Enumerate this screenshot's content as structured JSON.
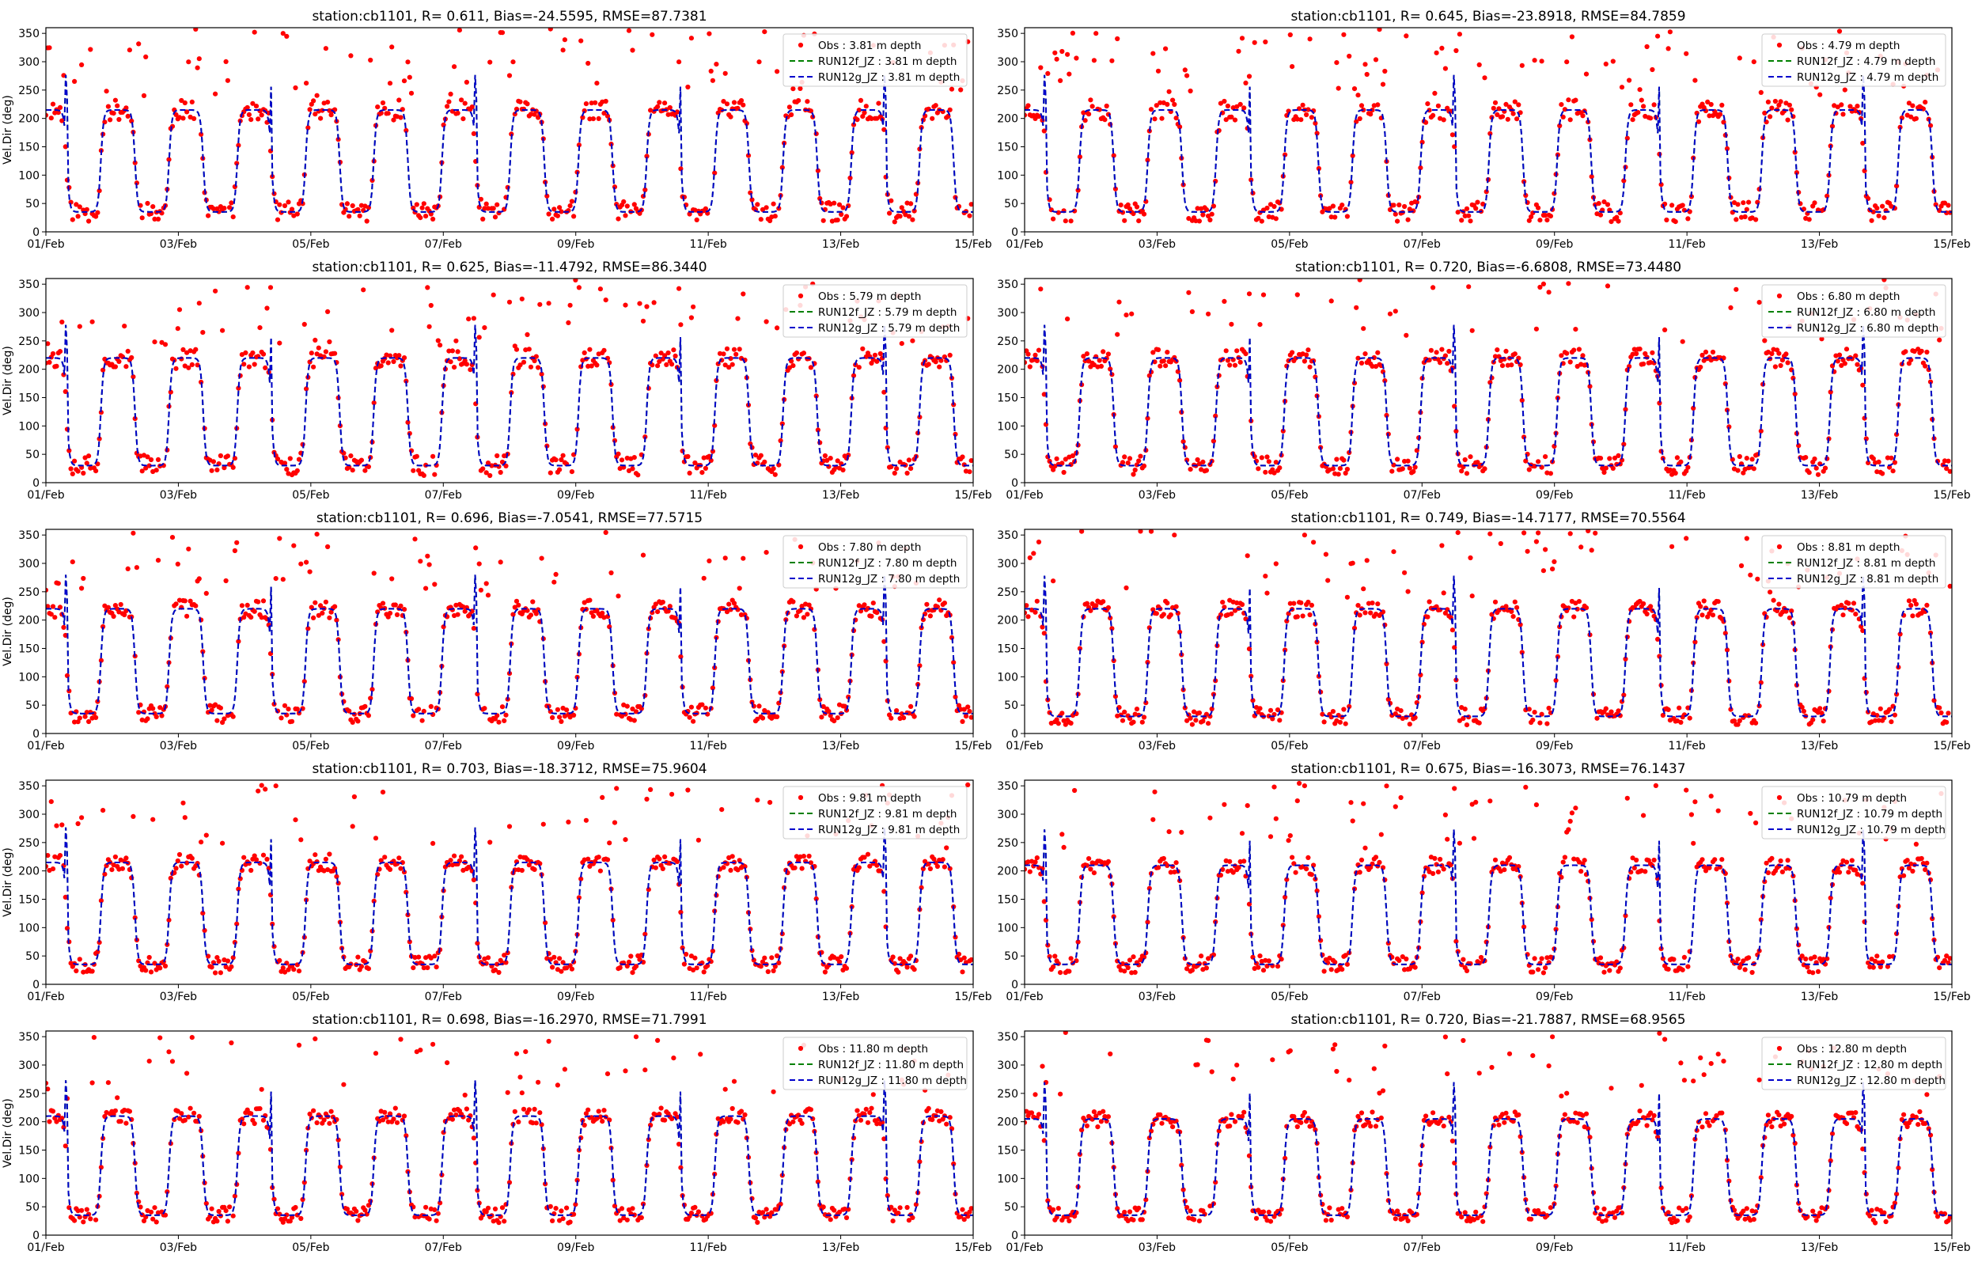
{
  "figure": {
    "background": "#ffffff"
  },
  "colors": {
    "obs": "#ff0000",
    "model_f": "#008000",
    "model_g": "#0000cc",
    "axis": "#000000"
  },
  "chart_data": [
    {
      "type": "scatter+line",
      "title": "station:cb1101, R= 0.611, Bias=-24.5595, RMSE=87.7381",
      "ylabel": "Vel.Dir (deg)",
      "ylim": [
        0,
        360
      ],
      "yticks": [
        0,
        50,
        100,
        150,
        200,
        250,
        300,
        350
      ],
      "xlim": [
        "01/Feb",
        "15/Feb"
      ],
      "xticks": [
        "01/Feb",
        "03/Feb",
        "05/Feb",
        "07/Feb",
        "09/Feb",
        "11/Feb",
        "13/Feb",
        "15/Feb"
      ],
      "legend_position": "upper right",
      "series": [
        {
          "name": "Obs : 3.81 m depth",
          "style": "dots",
          "color": "#ff0000"
        },
        {
          "name": "RUN12f_JZ : 3.81 m depth",
          "style": "dashed",
          "color": "#008000"
        },
        {
          "name": "RUN12g_JZ : 3.81 m depth",
          "style": "dashed",
          "color": "#0000cc"
        }
      ],
      "pattern": {
        "period_days": 1.03,
        "ebb_deg": 215,
        "flood_deg": 35,
        "obs_spread_deg": 18,
        "obs_spike_fraction": 0.16,
        "phase_days": 0.2,
        "seed": 11
      }
    },
    {
      "type": "scatter+line",
      "title": "station:cb1101, R= 0.645, Bias=-23.8918, RMSE=84.7859",
      "ylabel": "",
      "ylim": [
        0,
        360
      ],
      "yticks": [
        0,
        50,
        100,
        150,
        200,
        250,
        300,
        350
      ],
      "xlim": [
        "01/Feb",
        "15/Feb"
      ],
      "xticks": [
        "01/Feb",
        "03/Feb",
        "05/Feb",
        "07/Feb",
        "09/Feb",
        "11/Feb",
        "13/Feb",
        "15/Feb"
      ],
      "legend_position": "upper right",
      "series": [
        {
          "name": "Obs : 4.79 m depth",
          "style": "dots",
          "color": "#ff0000"
        },
        {
          "name": "RUN12f_JZ : 4.79 m depth",
          "style": "dashed",
          "color": "#008000"
        },
        {
          "name": "RUN12g_JZ : 4.79 m depth",
          "style": "dashed",
          "color": "#0000cc"
        }
      ],
      "pattern": {
        "period_days": 1.03,
        "ebb_deg": 215,
        "flood_deg": 35,
        "obs_spread_deg": 18,
        "obs_spike_fraction": 0.15,
        "phase_days": 0.2,
        "seed": 23
      }
    },
    {
      "type": "scatter+line",
      "title": "station:cb1101, R= 0.625, Bias=-11.4792, RMSE=86.3440",
      "ylabel": "Vel.Dir (deg)",
      "ylim": [
        0,
        360
      ],
      "yticks": [
        0,
        50,
        100,
        150,
        200,
        250,
        300,
        350
      ],
      "xlim": [
        "01/Feb",
        "15/Feb"
      ],
      "xticks": [
        "01/Feb",
        "03/Feb",
        "05/Feb",
        "07/Feb",
        "09/Feb",
        "11/Feb",
        "13/Feb",
        "15/Feb"
      ],
      "legend_position": "upper right",
      "series": [
        {
          "name": "Obs : 5.79 m depth",
          "style": "dots",
          "color": "#ff0000"
        },
        {
          "name": "RUN12f_JZ : 5.79 m depth",
          "style": "dashed",
          "color": "#008000"
        },
        {
          "name": "RUN12g_JZ : 5.79 m depth",
          "style": "dashed",
          "color": "#0000cc"
        }
      ],
      "pattern": {
        "period_days": 1.03,
        "ebb_deg": 220,
        "flood_deg": 30,
        "obs_spread_deg": 18,
        "obs_spike_fraction": 0.14,
        "phase_days": 0.2,
        "seed": 37
      }
    },
    {
      "type": "scatter+line",
      "title": "station:cb1101, R= 0.720, Bias=-6.6808, RMSE=73.4480",
      "ylabel": "",
      "ylim": [
        0,
        360
      ],
      "yticks": [
        0,
        50,
        100,
        150,
        200,
        250,
        300,
        350
      ],
      "xlim": [
        "01/Feb",
        "15/Feb"
      ],
      "xticks": [
        "01/Feb",
        "03/Feb",
        "05/Feb",
        "07/Feb",
        "09/Feb",
        "11/Feb",
        "13/Feb",
        "15/Feb"
      ],
      "legend_position": "upper right",
      "series": [
        {
          "name": "Obs : 6.80 m depth",
          "style": "dots",
          "color": "#ff0000"
        },
        {
          "name": "RUN12f_JZ : 6.80 m depth",
          "style": "dashed",
          "color": "#008000"
        },
        {
          "name": "RUN12g_JZ : 6.80 m depth",
          "style": "dashed",
          "color": "#0000cc"
        }
      ],
      "pattern": {
        "period_days": 1.03,
        "ebb_deg": 220,
        "flood_deg": 30,
        "obs_spread_deg": 16,
        "obs_spike_fraction": 0.12,
        "phase_days": 0.2,
        "seed": 41
      }
    },
    {
      "type": "scatter+line",
      "title": "station:cb1101, R= 0.696, Bias=-7.0541, RMSE=77.5715",
      "ylabel": "Vel.Dir (deg)",
      "ylim": [
        0,
        360
      ],
      "yticks": [
        0,
        50,
        100,
        150,
        200,
        250,
        300,
        350
      ],
      "xlim": [
        "01/Feb",
        "15/Feb"
      ],
      "xticks": [
        "01/Feb",
        "03/Feb",
        "05/Feb",
        "07/Feb",
        "09/Feb",
        "11/Feb",
        "13/Feb",
        "15/Feb"
      ],
      "legend_position": "upper right",
      "series": [
        {
          "name": "Obs : 7.80 m depth",
          "style": "dots",
          "color": "#ff0000"
        },
        {
          "name": "RUN12f_JZ : 7.80 m depth",
          "style": "dashed",
          "color": "#008000"
        },
        {
          "name": "RUN12g_JZ : 7.80 m depth",
          "style": "dashed",
          "color": "#0000cc"
        }
      ],
      "pattern": {
        "period_days": 1.03,
        "ebb_deg": 220,
        "flood_deg": 35,
        "obs_spread_deg": 16,
        "obs_spike_fraction": 0.12,
        "phase_days": 0.2,
        "seed": 53
      }
    },
    {
      "type": "scatter+line",
      "title": "station:cb1101, R= 0.749, Bias=-14.7177, RMSE=70.5564",
      "ylabel": "",
      "ylim": [
        0,
        360
      ],
      "yticks": [
        0,
        50,
        100,
        150,
        200,
        250,
        300,
        350
      ],
      "xlim": [
        "01/Feb",
        "15/Feb"
      ],
      "xticks": [
        "01/Feb",
        "03/Feb",
        "05/Feb",
        "07/Feb",
        "09/Feb",
        "11/Feb",
        "13/Feb",
        "15/Feb"
      ],
      "legend_position": "upper right",
      "series": [
        {
          "name": "Obs : 8.81 m depth",
          "style": "dots",
          "color": "#ff0000"
        },
        {
          "name": "RUN12f_JZ : 8.81 m depth",
          "style": "dashed",
          "color": "#008000"
        },
        {
          "name": "RUN12g_JZ : 8.81 m depth",
          "style": "dashed",
          "color": "#0000cc"
        }
      ],
      "pattern": {
        "period_days": 1.03,
        "ebb_deg": 220,
        "flood_deg": 30,
        "obs_spread_deg": 15,
        "obs_spike_fraction": 0.1,
        "phase_days": 0.2,
        "seed": 67
      }
    },
    {
      "type": "scatter+line",
      "title": "station:cb1101, R= 0.703, Bias=-18.3712, RMSE=75.9604",
      "ylabel": "Vel.Dir (deg)",
      "ylim": [
        0,
        360
      ],
      "yticks": [
        0,
        50,
        100,
        150,
        200,
        250,
        300,
        350
      ],
      "xlim": [
        "01/Feb",
        "15/Feb"
      ],
      "xticks": [
        "01/Feb",
        "03/Feb",
        "05/Feb",
        "07/Feb",
        "09/Feb",
        "11/Feb",
        "13/Feb",
        "15/Feb"
      ],
      "legend_position": "upper right",
      "series": [
        {
          "name": "Obs : 9.81 m depth",
          "style": "dots",
          "color": "#ff0000"
        },
        {
          "name": "RUN12f_JZ : 9.81 m depth",
          "style": "dashed",
          "color": "#008000"
        },
        {
          "name": "RUN12g_JZ : 9.81 m depth",
          "style": "dashed",
          "color": "#0000cc"
        }
      ],
      "pattern": {
        "period_days": 1.03,
        "ebb_deg": 215,
        "flood_deg": 35,
        "obs_spread_deg": 15,
        "obs_spike_fraction": 0.11,
        "phase_days": 0.2,
        "seed": 79
      }
    },
    {
      "type": "scatter+line",
      "title": "station:cb1101, R= 0.675, Bias=-16.3073, RMSE=76.1437",
      "ylabel": "",
      "ylim": [
        0,
        360
      ],
      "yticks": [
        0,
        50,
        100,
        150,
        200,
        250,
        300,
        350
      ],
      "xlim": [
        "01/Feb",
        "15/Feb"
      ],
      "xticks": [
        "01/Feb",
        "03/Feb",
        "05/Feb",
        "07/Feb",
        "09/Feb",
        "11/Feb",
        "13/Feb",
        "15/Feb"
      ],
      "legend_position": "upper right",
      "series": [
        {
          "name": "Obs : 10.79 m depth",
          "style": "dots",
          "color": "#ff0000"
        },
        {
          "name": "RUN12f_JZ : 10.79 m depth",
          "style": "dashed",
          "color": "#008000"
        },
        {
          "name": "RUN12g_JZ : 10.79 m depth",
          "style": "dashed",
          "color": "#0000cc"
        }
      ],
      "pattern": {
        "period_days": 1.03,
        "ebb_deg": 210,
        "flood_deg": 35,
        "obs_spread_deg": 15,
        "obs_spike_fraction": 0.11,
        "phase_days": 0.2,
        "seed": 83
      }
    },
    {
      "type": "scatter+line",
      "title": "station:cb1101, R= 0.698, Bias=-16.2970, RMSE=71.7991",
      "ylabel": "Vel.Dir (deg)",
      "ylim": [
        0,
        360
      ],
      "yticks": [
        0,
        50,
        100,
        150,
        200,
        250,
        300,
        350
      ],
      "xlim": [
        "01/Feb",
        "15/Feb"
      ],
      "xticks": [
        "01/Feb",
        "03/Feb",
        "05/Feb",
        "07/Feb",
        "09/Feb",
        "11/Feb",
        "13/Feb",
        "15/Feb"
      ],
      "legend_position": "upper right",
      "series": [
        {
          "name": "Obs : 11.80 m depth",
          "style": "dots",
          "color": "#ff0000"
        },
        {
          "name": "RUN12f_JZ : 11.80 m depth",
          "style": "dashed",
          "color": "#008000"
        },
        {
          "name": "RUN12g_JZ : 11.80 m depth",
          "style": "dashed",
          "color": "#0000cc"
        }
      ],
      "pattern": {
        "period_days": 1.03,
        "ebb_deg": 210,
        "flood_deg": 35,
        "obs_spread_deg": 14,
        "obs_spike_fraction": 0.1,
        "phase_days": 0.2,
        "seed": 97
      }
    },
    {
      "type": "scatter+line",
      "title": "station:cb1101, R= 0.720, Bias=-21.7887, RMSE=68.9565",
      "ylabel": "",
      "ylim": [
        0,
        360
      ],
      "yticks": [
        0,
        50,
        100,
        150,
        200,
        250,
        300,
        350
      ],
      "xlim": [
        "01/Feb",
        "15/Feb"
      ],
      "xticks": [
        "01/Feb",
        "03/Feb",
        "05/Feb",
        "07/Feb",
        "09/Feb",
        "11/Feb",
        "13/Feb",
        "15/Feb"
      ],
      "legend_position": "upper right",
      "series": [
        {
          "name": "Obs : 12.80 m depth",
          "style": "dots",
          "color": "#ff0000"
        },
        {
          "name": "RUN12f_JZ : 12.80 m depth",
          "style": "dashed",
          "color": "#008000"
        },
        {
          "name": "RUN12g_JZ : 12.80 m depth",
          "style": "dashed",
          "color": "#0000cc"
        }
      ],
      "pattern": {
        "period_days": 1.03,
        "ebb_deg": 205,
        "flood_deg": 35,
        "obs_spread_deg": 14,
        "obs_spike_fraction": 0.1,
        "phase_days": 0.2,
        "seed": 101
      }
    }
  ]
}
